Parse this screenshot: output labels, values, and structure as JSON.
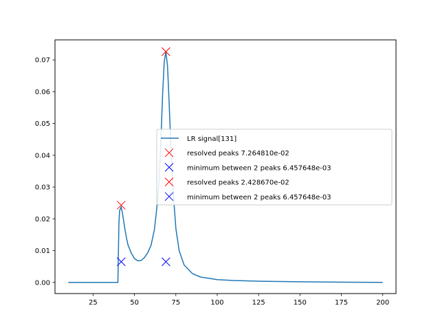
{
  "chart_data": {
    "type": "line",
    "xlim": [
      2,
      208
    ],
    "ylim": [
      -0.0035,
      0.0763
    ],
    "x_ticks": [
      25,
      50,
      75,
      100,
      125,
      150,
      175,
      200
    ],
    "y_ticks": [
      0.0,
      0.01,
      0.02,
      0.03,
      0.04,
      0.05,
      0.06,
      0.07
    ],
    "x_tick_labels": [
      "25",
      "50",
      "75",
      "100",
      "125",
      "150",
      "175",
      "200"
    ],
    "y_tick_labels": [
      "0.00",
      "0.01",
      "0.02",
      "0.03",
      "0.04",
      "0.05",
      "0.06",
      "0.07"
    ],
    "grid": false,
    "legend_position": "center-right",
    "series": [
      {
        "name": "LR signal[131]",
        "kind": "line",
        "color": "#1f77b4",
        "x": [
          10,
          20,
          30,
          38,
          40,
          40.6,
          41,
          42,
          43,
          44,
          45,
          46,
          48,
          50,
          52,
          54,
          56,
          58,
          60,
          62,
          63,
          64,
          65,
          66,
          67,
          68,
          69,
          70,
          71,
          72,
          73,
          74,
          75,
          77,
          80,
          85,
          90,
          100,
          110,
          125,
          150,
          175,
          200
        ],
        "y": [
          0.0,
          0.0,
          0.0,
          0.0,
          0.0,
          0.018,
          0.0225,
          0.0238,
          0.021,
          0.0175,
          0.0145,
          0.012,
          0.0093,
          0.0075,
          0.0068,
          0.0069,
          0.0078,
          0.0093,
          0.0117,
          0.0165,
          0.021,
          0.026,
          0.033,
          0.045,
          0.059,
          0.0695,
          0.0725,
          0.068,
          0.056,
          0.043,
          0.032,
          0.024,
          0.017,
          0.01,
          0.0055,
          0.0028,
          0.0017,
          0.0009,
          0.0006,
          0.0004,
          0.0002,
          0.0001,
          0.0
        ]
      },
      {
        "name": "resolved peaks 7.264810e-02",
        "kind": "marker",
        "color": "#ff0000",
        "points": [
          [
            69,
            0.0726
          ]
        ]
      },
      {
        "name": "minimum between 2 peaks 6.457648e-03",
        "kind": "marker",
        "color": "#0000ff",
        "points": [
          [
            69,
            0.0065
          ]
        ]
      },
      {
        "name": "resolved peaks 2.428670e-02",
        "kind": "marker",
        "color": "#ff0000",
        "points": [
          [
            42,
            0.0243
          ]
        ]
      },
      {
        "name": "minimum between 2 peaks 6.457648e-03",
        "kind": "marker",
        "color": "#0000ff",
        "points": [
          [
            42,
            0.0065
          ]
        ]
      }
    ]
  }
}
